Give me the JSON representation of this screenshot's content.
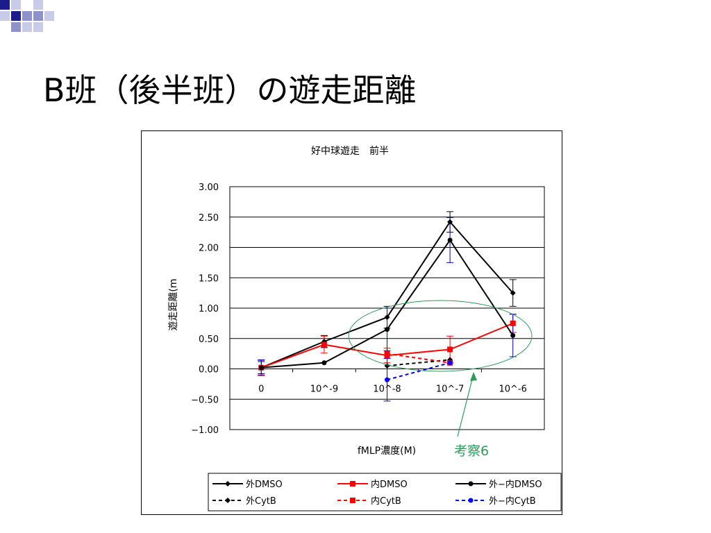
{
  "slide": {
    "title": "B班（後半班）の遊走距離"
  },
  "annotation": {
    "label": "考察6",
    "color": "#2e9a5a"
  },
  "chart_data": {
    "type": "line",
    "title": "好中球遊走　前半",
    "xlabel": "fMLP濃度(M)",
    "ylabel": "遊走距離(m",
    "categories": [
      "0",
      "10^-9",
      "10^-8",
      "10^-7",
      "10^-6"
    ],
    "ylim": [
      -1.0,
      3.0
    ],
    "yticks": [
      "3.00",
      "2.50",
      "2.00",
      "1.50",
      "1.00",
      "0.50",
      "0.00",
      "−0.50",
      "−1.00"
    ],
    "grid": true,
    "legend_position": "bottom",
    "series": [
      {
        "name": "外DMSO",
        "color": "#000000",
        "marker": "diamond",
        "dashed": false,
        "values": [
          0.02,
          0.45,
          0.85,
          2.42,
          1.25
        ],
        "errors": [
          0.1,
          0.1,
          0.18,
          0.17,
          0.22
        ]
      },
      {
        "name": "内DMSO",
        "color": "#ff0000",
        "marker": "square",
        "dashed": false,
        "values": [
          0.02,
          0.4,
          0.22,
          0.32,
          0.75
        ],
        "errors": [
          0.12,
          0.14,
          0.12,
          0.22,
          0.15
        ]
      },
      {
        "name": "外−内DMSO",
        "color": "#000000",
        "marker": "circle",
        "dashed": false,
        "values": [
          0.02,
          0.1,
          0.65,
          2.12,
          0.55
        ],
        "errors": [
          0.13,
          0.0,
          0.35,
          0.37,
          0.35
        ],
        "error_color": "#0000cc"
      },
      {
        "name": "外CytB",
        "color": "#000000",
        "marker": "diamond",
        "dashed": true,
        "values": [
          null,
          null,
          0.05,
          0.15,
          null
        ],
        "errors": [
          0,
          0,
          0,
          0,
          0
        ]
      },
      {
        "name": "内CytB",
        "color": "#ff0000",
        "marker": "square",
        "dashed": true,
        "values": [
          null,
          null,
          0.25,
          0.1,
          null
        ],
        "errors": [
          0,
          0,
          0,
          0,
          0
        ]
      },
      {
        "name": "外−内CytB",
        "color": "#0000ff",
        "marker": "circle",
        "dashed": true,
        "values": [
          null,
          null,
          -0.18,
          0.1,
          null
        ],
        "errors": [
          0,
          0,
          0.35,
          0,
          0
        ]
      }
    ]
  }
}
